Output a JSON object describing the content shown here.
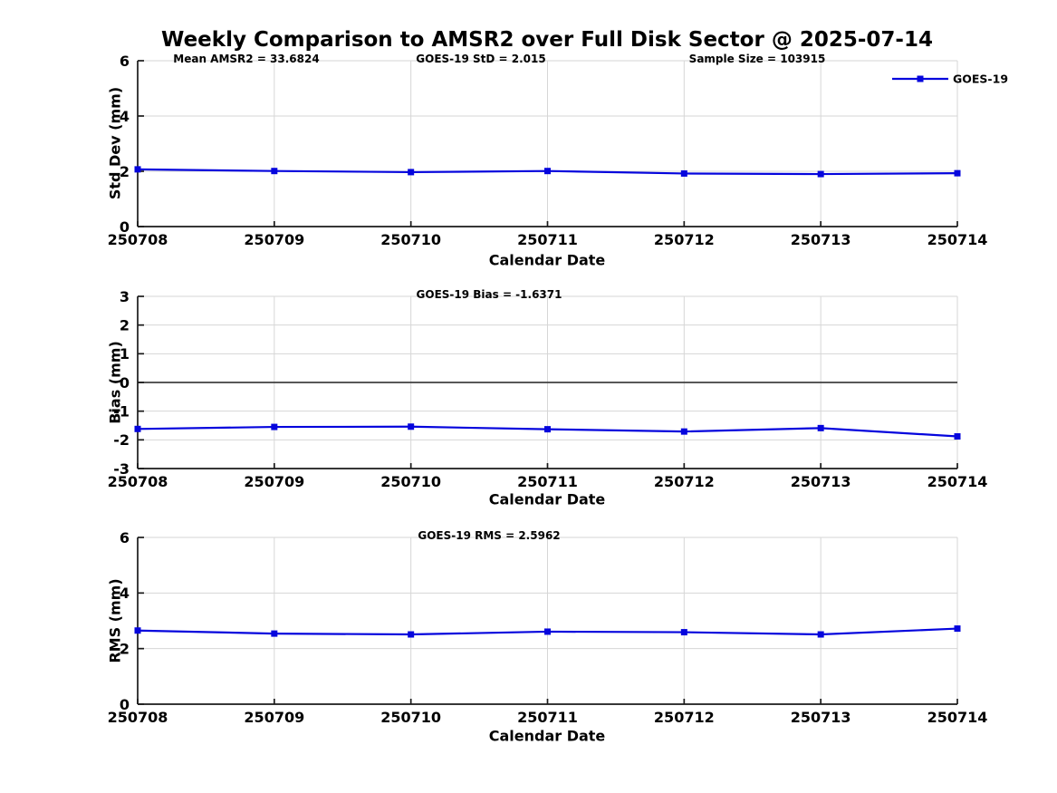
{
  "title": "Weekly Comparison to AMSR2 over Full Disk Sector @ 2025-07-14",
  "legend": {
    "label": "GOES-19",
    "position": "top-right"
  },
  "colors": {
    "line": "#0505dd",
    "grid": "#d6d6d6",
    "spine": "#1a1a1a",
    "zero_line": "#404040",
    "text": "#000000",
    "background": "#ffffff"
  },
  "chart_data": [
    {
      "id": "std-dev",
      "type": "line",
      "ylabel": "Std Dev (mm)",
      "xlabel": "Calendar Date",
      "ylim": [
        0,
        6
      ],
      "yticks": [
        0,
        2,
        4,
        6
      ],
      "grid": true,
      "zero_line": false,
      "categories": [
        "250708",
        "250709",
        "250710",
        "250711",
        "250712",
        "250713",
        "250714"
      ],
      "annotations": [
        "Mean AMSR2 = 33.6824",
        "GOES-19 StD = 2.015",
        "Sample Size = 103915"
      ],
      "series": [
        {
          "name": "GOES-19",
          "values": [
            2.07,
            2.01,
            1.97,
            2.01,
            1.92,
            1.9,
            1.93
          ]
        }
      ]
    },
    {
      "id": "bias",
      "type": "line",
      "ylabel": "Bias (mm)",
      "xlabel": "Calendar Date",
      "ylim": [
        -3,
        3
      ],
      "yticks": [
        -3,
        -2,
        -1,
        0,
        1,
        2,
        3
      ],
      "grid": true,
      "zero_line": true,
      "categories": [
        "250708",
        "250709",
        "250710",
        "250711",
        "250712",
        "250713",
        "250714"
      ],
      "annotations": [
        "GOES-19 Bias  = -1.6371"
      ],
      "series": [
        {
          "name": "GOES-19",
          "values": [
            -1.62,
            -1.55,
            -1.54,
            -1.63,
            -1.71,
            -1.59,
            -1.88
          ]
        }
      ]
    },
    {
      "id": "rms",
      "type": "line",
      "ylabel": "RMS (mm)",
      "xlabel": "Calendar Date",
      "ylim": [
        0,
        6
      ],
      "yticks": [
        0,
        2,
        4,
        6
      ],
      "grid": true,
      "zero_line": false,
      "categories": [
        "250708",
        "250709",
        "250710",
        "250711",
        "250712",
        "250713",
        "250714"
      ],
      "annotations": [
        "GOES-19 RMS = 2.5962"
      ],
      "series": [
        {
          "name": "GOES-19",
          "values": [
            2.65,
            2.54,
            2.51,
            2.61,
            2.59,
            2.51,
            2.72
          ]
        }
      ]
    }
  ]
}
